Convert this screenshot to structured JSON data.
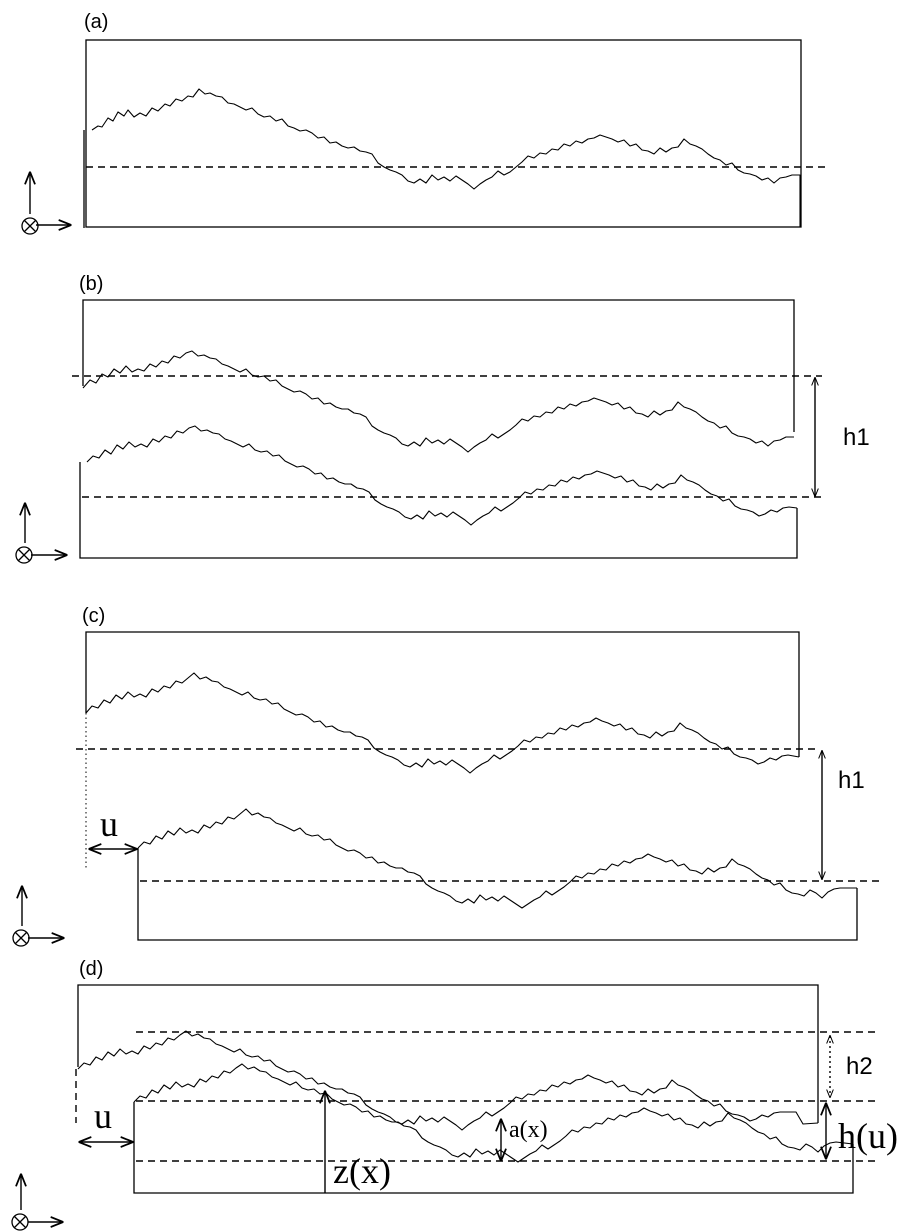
{
  "panels": {
    "a": {
      "label": "(a)"
    },
    "b": {
      "label": "(b)",
      "height_label": "h1"
    },
    "c": {
      "label": "(c)",
      "shift_label": "u",
      "height_label": "h1"
    },
    "d": {
      "label": "(d)",
      "shift_label": "u",
      "h2_label": "h2",
      "hu_label": "h(u)",
      "aperture_label": "a(x)",
      "z_label": "z(x)"
    }
  }
}
